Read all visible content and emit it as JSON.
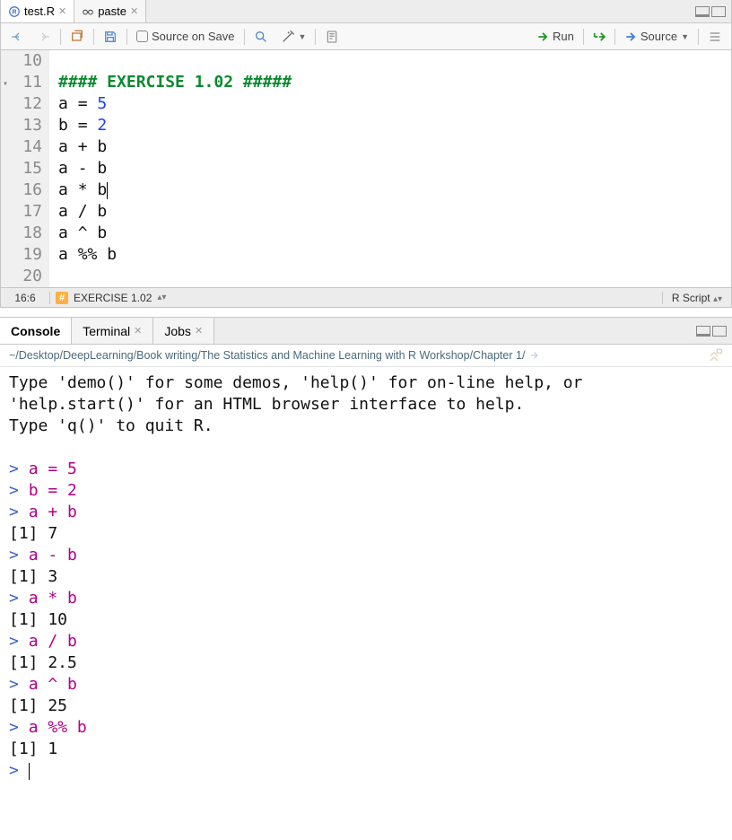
{
  "editor": {
    "tabs": [
      {
        "label": "test.R",
        "icon": "r-file-icon",
        "active": true
      },
      {
        "label": "paste",
        "icon": "glasses-icon",
        "active": false
      }
    ],
    "toolbar": {
      "source_on_save": "Source on Save",
      "run": "Run",
      "source": "Source"
    },
    "gutter_start": 10,
    "lines": [
      {
        "n": 10,
        "tokens": []
      },
      {
        "n": 11,
        "fold": true,
        "tokens": [
          {
            "t": "#### EXERCISE 1.02 #####",
            "c": "tok-comment"
          }
        ]
      },
      {
        "n": 12,
        "tokens": [
          {
            "t": "a ",
            "c": "tok-var"
          },
          {
            "t": "=",
            "c": "tok-op"
          },
          {
            "t": " ",
            "c": ""
          },
          {
            "t": "5",
            "c": "tok-num"
          }
        ]
      },
      {
        "n": 13,
        "tokens": [
          {
            "t": "b ",
            "c": "tok-var"
          },
          {
            "t": "=",
            "c": "tok-op"
          },
          {
            "t": " ",
            "c": ""
          },
          {
            "t": "2",
            "c": "tok-num"
          }
        ]
      },
      {
        "n": 14,
        "tokens": [
          {
            "t": "a ",
            "c": "tok-var"
          },
          {
            "t": "+",
            "c": "tok-op"
          },
          {
            "t": " b",
            "c": "tok-var"
          }
        ]
      },
      {
        "n": 15,
        "tokens": [
          {
            "t": "a ",
            "c": "tok-var"
          },
          {
            "t": "-",
            "c": "tok-op"
          },
          {
            "t": " b",
            "c": "tok-var"
          }
        ]
      },
      {
        "n": 16,
        "tokens": [
          {
            "t": "a ",
            "c": "tok-var"
          },
          {
            "t": "*",
            "c": "tok-op"
          },
          {
            "t": " b",
            "c": "tok-var"
          }
        ],
        "cursor_after": true
      },
      {
        "n": 17,
        "tokens": [
          {
            "t": "a ",
            "c": "tok-var"
          },
          {
            "t": "/",
            "c": "tok-op"
          },
          {
            "t": " b",
            "c": "tok-var"
          }
        ]
      },
      {
        "n": 18,
        "tokens": [
          {
            "t": "a ",
            "c": "tok-var"
          },
          {
            "t": "^",
            "c": "tok-op"
          },
          {
            "t": " b",
            "c": "tok-var"
          }
        ]
      },
      {
        "n": 19,
        "tokens": [
          {
            "t": "a ",
            "c": "tok-var"
          },
          {
            "t": "%%",
            "c": "tok-op"
          },
          {
            "t": " b",
            "c": "tok-var"
          }
        ]
      },
      {
        "n": 20,
        "tokens": []
      }
    ],
    "statusbar": {
      "pos": "16:6",
      "section": "EXERCISE 1.02",
      "lang": "R Script"
    }
  },
  "console": {
    "tabs": [
      {
        "label": "Console",
        "active": true,
        "closable": false
      },
      {
        "label": "Terminal",
        "active": false,
        "closable": true
      },
      {
        "label": "Jobs",
        "active": false,
        "closable": true
      }
    ],
    "path": "~/Desktop/DeepLearning/Book writing/The Statistics and Machine Learning with R Workshop/Chapter 1/",
    "lines": [
      {
        "kind": "out",
        "text": "Type 'demo()' for some demos, 'help()' for on-line help, or"
      },
      {
        "kind": "out",
        "text": "'help.start()' for an HTML browser interface to help."
      },
      {
        "kind": "out",
        "text": "Type 'q()' to quit R."
      },
      {
        "kind": "blank"
      },
      {
        "kind": "cmd",
        "text": "a = 5"
      },
      {
        "kind": "cmd",
        "text": "b = 2"
      },
      {
        "kind": "cmd",
        "text": "a + b"
      },
      {
        "kind": "out",
        "text": "[1] 7"
      },
      {
        "kind": "cmd",
        "text": "a - b"
      },
      {
        "kind": "out",
        "text": "[1] 3"
      },
      {
        "kind": "cmd",
        "text": "a * b"
      },
      {
        "kind": "out",
        "text": "[1] 10"
      },
      {
        "kind": "cmd",
        "text": "a / b"
      },
      {
        "kind": "out",
        "text": "[1] 2.5"
      },
      {
        "kind": "cmd",
        "text": "a ^ b"
      },
      {
        "kind": "out",
        "text": "[1] 25"
      },
      {
        "kind": "cmd",
        "text": "a %% b"
      },
      {
        "kind": "out",
        "text": "[1] 1"
      },
      {
        "kind": "prompt_cursor"
      }
    ]
  },
  "colors": {
    "comment": "#0b8a2f",
    "number": "#1a3fff",
    "prompt": "#3a5fcd",
    "command": "#b2008a",
    "gutter_bg": "#f0f0f0",
    "tab_bg": "#ededed"
  }
}
